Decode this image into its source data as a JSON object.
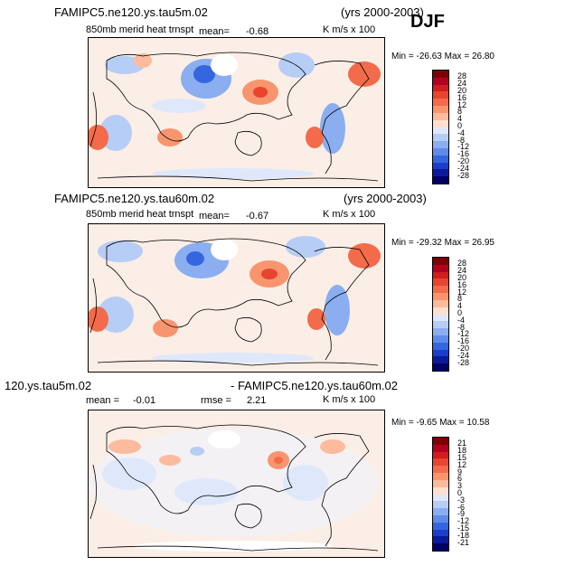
{
  "season": "DJF",
  "chart_data": [
    {
      "type": "heatmap",
      "title": "FAMIPC5.ne120.ys.tau5m.02",
      "years": "(yrs 2000-2003)",
      "field": "850mb merid heat trnspt",
      "mean_label": "mean=",
      "mean": "-0.68",
      "units": "K m/s x 100",
      "min_label": "Min =",
      "min": "-26.63",
      "max_label": "Max =",
      "max": "26.80",
      "colorbar_levels": [
        "28",
        "24",
        "20",
        "16",
        "12",
        "8",
        "4",
        "0",
        "-4",
        "-8",
        "-12",
        "-16",
        "-20",
        "-24",
        "-28"
      ]
    },
    {
      "type": "heatmap",
      "title": "FAMIPC5.ne120.ys.tau60m.02",
      "years": "(yrs 2000-2003)",
      "field": "850mb merid heat trnspt",
      "mean_label": "mean=",
      "mean": "-0.67",
      "units": "K m/s x 100",
      "min_label": "Min =",
      "min": "-29.32",
      "max_label": "Max =",
      "max": "26.95",
      "colorbar_levels": [
        "28",
        "24",
        "20",
        "16",
        "12",
        "8",
        "4",
        "0",
        "-4",
        "-8",
        "-12",
        "-16",
        "-20",
        "-24",
        "-28"
      ]
    },
    {
      "type": "heatmap",
      "title_left": "120.ys.tau5m.02",
      "title_right": "- FAMIPC5.ne120.ys.tau60m.02",
      "mean_label": "mean =",
      "mean": "-0.01",
      "rmse_label": "rmse =",
      "rmse": "2.21",
      "units": "K m/s x 100",
      "min_label": "Min =",
      "min": "-9.65",
      "max_label": "Max =",
      "max": "10.58",
      "colorbar_levels": [
        "21",
        "18",
        "15",
        "12",
        "9",
        "6",
        "3",
        "0",
        "-3",
        "-6",
        "-9",
        "-12",
        "-15",
        "-18",
        "-21"
      ]
    }
  ],
  "colorbar_colors": [
    "#7f0000",
    "#b2001f",
    "#d11d1d",
    "#e8452e",
    "#f36b4a",
    "#f8956f",
    "#fbbb9c",
    "#fde0d0",
    "#dfe8fb",
    "#b6cdf6",
    "#8aaef0",
    "#5f8cea",
    "#3566e0",
    "#1c3dcc",
    "#0a1a9c",
    "#000066"
  ]
}
